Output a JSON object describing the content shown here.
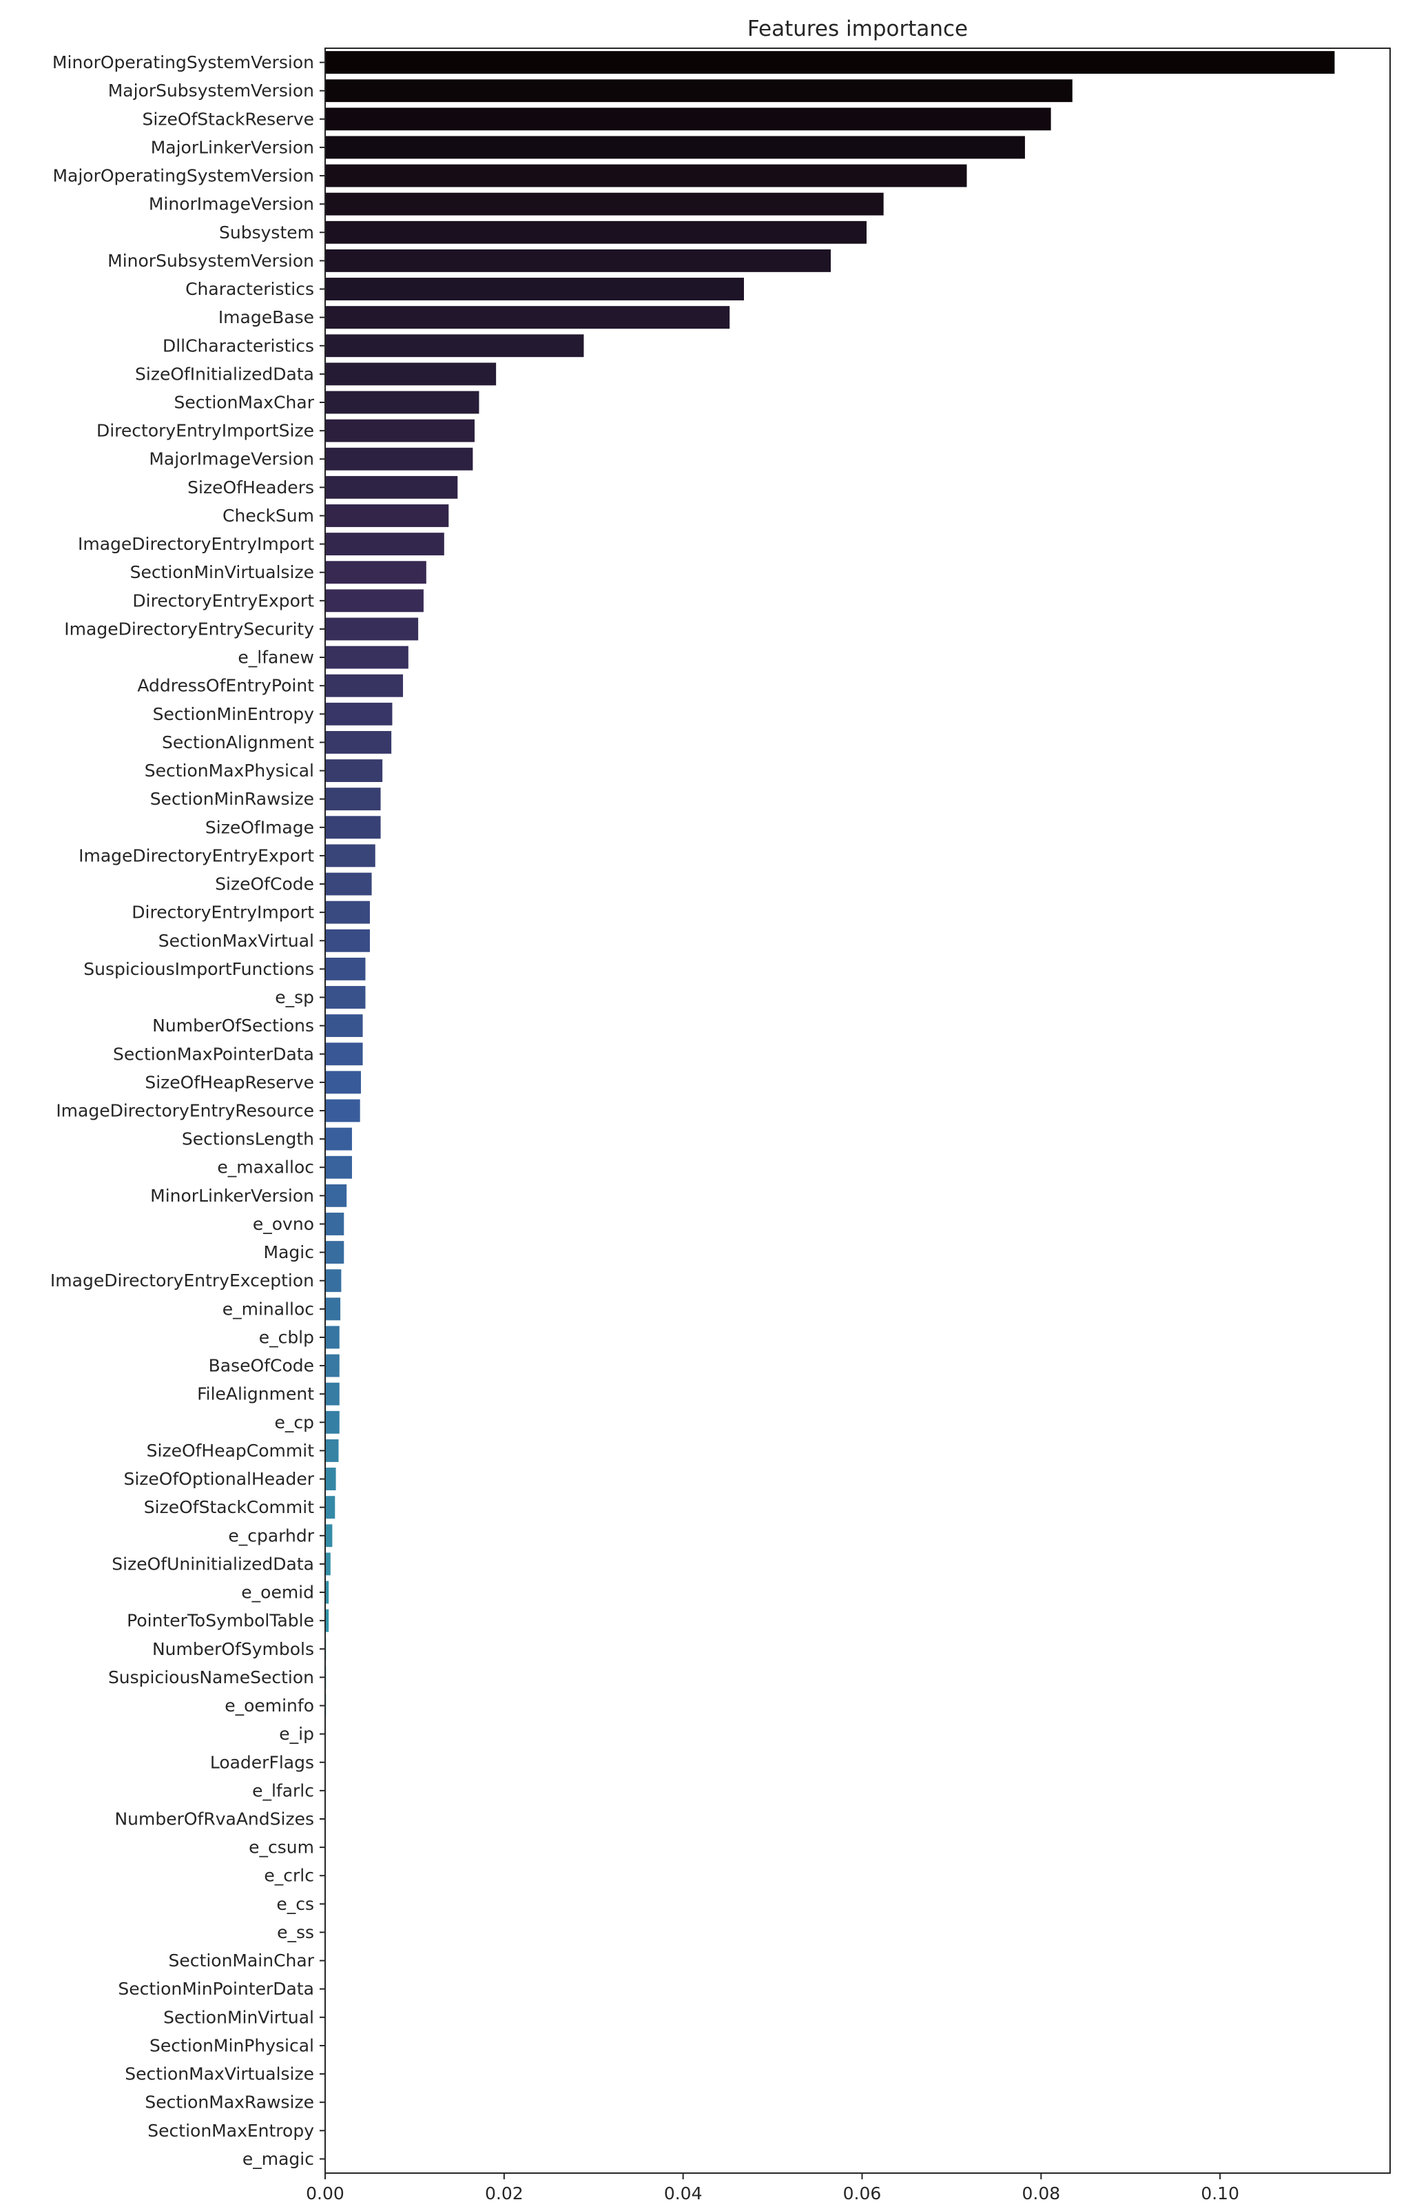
{
  "chart_data": {
    "type": "bar",
    "orientation": "horizontal",
    "title": "Features importance",
    "xlabel": "",
    "ylabel": "",
    "xlim": [
      0,
      0.119
    ],
    "x_ticks": [
      "0.00",
      "0.02",
      "0.04",
      "0.06",
      "0.08",
      "0.10"
    ],
    "x_tick_values": [
      0.0,
      0.02,
      0.04,
      0.06,
      0.08,
      0.1
    ],
    "grid": false,
    "legend": "none",
    "palette": "dark-purple to teal gradient (mako)",
    "categories": [
      "MinorOperatingSystemVersion",
      "MajorSubsystemVersion",
      "SizeOfStackReserve",
      "MajorLinkerVersion",
      "MajorOperatingSystemVersion",
      "MinorImageVersion",
      "Subsystem",
      "MinorSubsystemVersion",
      "Characteristics",
      "ImageBase",
      "DllCharacteristics",
      "SizeOfInitializedData",
      "SectionMaxChar",
      "DirectoryEntryImportSize",
      "MajorImageVersion",
      "SizeOfHeaders",
      "CheckSum",
      "ImageDirectoryEntryImport",
      "SectionMinVirtualsize",
      "DirectoryEntryExport",
      "ImageDirectoryEntrySecurity",
      "e_lfanew",
      "AddressOfEntryPoint",
      "SectionMinEntropy",
      "SectionAlignment",
      "SectionMaxPhysical",
      "SectionMinRawsize",
      "SizeOfImage",
      "ImageDirectoryEntryExport",
      "SizeOfCode",
      "DirectoryEntryImport",
      "SectionMaxVirtual",
      "SuspiciousImportFunctions",
      "e_sp",
      "NumberOfSections",
      "SectionMaxPointerData",
      "SizeOfHeapReserve",
      "ImageDirectoryEntryResource",
      "SectionsLength",
      "e_maxalloc",
      "MinorLinkerVersion",
      "e_ovno",
      "Magic",
      "ImageDirectoryEntryException",
      "e_minalloc",
      "e_cblp",
      "BaseOfCode",
      "FileAlignment",
      "e_cp",
      "SizeOfHeapCommit",
      "SizeOfOptionalHeader",
      "SizeOfStackCommit",
      "e_cparhdr",
      "SizeOfUninitializedData",
      "e_oemid",
      "PointerToSymbolTable",
      "NumberOfSymbols",
      "SuspiciousNameSection",
      "e_oeminfo",
      "e_ip",
      "LoaderFlags",
      "e_lfarlc",
      "NumberOfRvaAndSizes",
      "e_csum",
      "e_crlc",
      "e_cs",
      "e_ss",
      "SectionMainChar",
      "SectionMinPointerData",
      "SectionMinVirtual",
      "SectionMinPhysical",
      "SectionMaxVirtualsize",
      "SectionMaxRawsize",
      "SectionMaxEntropy",
      "e_magic"
    ],
    "values": [
      0.1128,
      0.0835,
      0.0811,
      0.0782,
      0.0717,
      0.0624,
      0.0605,
      0.0565,
      0.0468,
      0.0452,
      0.0289,
      0.0191,
      0.0172,
      0.0167,
      0.0165,
      0.0148,
      0.0138,
      0.0133,
      0.0113,
      0.011,
      0.0104,
      0.0093,
      0.0087,
      0.0075,
      0.0074,
      0.0064,
      0.0062,
      0.0062,
      0.0056,
      0.0052,
      0.005,
      0.005,
      0.0045,
      0.0045,
      0.0042,
      0.0042,
      0.004,
      0.0039,
      0.003,
      0.003,
      0.0024,
      0.0021,
      0.0021,
      0.0018,
      0.0017,
      0.0016,
      0.0016,
      0.0016,
      0.0016,
      0.0015,
      0.0012,
      0.0011,
      0.0008,
      0.0006,
      0.0004,
      0.0004,
      0.0001,
      0.0001,
      0.0001,
      0.0,
      0.0,
      0.0,
      0.0,
      0.0,
      0.0,
      0.0,
      0.0,
      0.0,
      0.0,
      0.0,
      0.0,
      0.0,
      0.0,
      0.0,
      0.0
    ],
    "colors": {
      "gradient_start": "#0b0405",
      "gradient_mid1": "#382a54",
      "gradient_mid2": "#395d9c",
      "gradient_mid3": "#3497a9",
      "gradient_end": "#60ceac",
      "axis": "#262626",
      "background": "#ffffff"
    }
  }
}
